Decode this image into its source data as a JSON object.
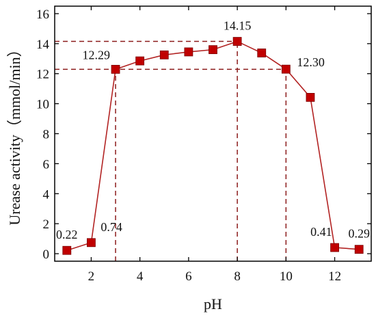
{
  "chart_data": {
    "type": "line",
    "title": "",
    "xlabel": "pH",
    "ylabel": "Urease activity（mmol/min）",
    "xlim": [
      0.5,
      13.5
    ],
    "ylim": [
      -0.5,
      16.5
    ],
    "xticks": [
      2,
      4,
      6,
      8,
      10,
      12
    ],
    "yticks": [
      0,
      2,
      4,
      6,
      8,
      10,
      12,
      14,
      16
    ],
    "grid": false,
    "marker": "square",
    "colors": {
      "series": "#B22222",
      "marker": "#C00000",
      "reference_lines": "#8B1A1A"
    },
    "series": [
      {
        "x": [
          1,
          2,
          3,
          4,
          5,
          6,
          7,
          8,
          9,
          10,
          11,
          12,
          13
        ],
        "values": [
          0.22,
          0.74,
          12.29,
          12.85,
          13.25,
          13.45,
          13.6,
          14.15,
          13.38,
          12.3,
          10.42,
          0.41,
          0.29
        ]
      }
    ],
    "data_labels": [
      {
        "x": 1,
        "y": 0.22,
        "text": "0.22"
      },
      {
        "x": 2,
        "y": 0.74,
        "text": "0.74"
      },
      {
        "x": 3,
        "y": 12.29,
        "text": "12.29"
      },
      {
        "x": 8,
        "y": 14.15,
        "text": "14.15"
      },
      {
        "x": 10,
        "y": 12.3,
        "text": "12.30"
      },
      {
        "x": 12,
        "y": 0.41,
        "text": "0.41"
      },
      {
        "x": 13,
        "y": 0.29,
        "text": "0.29"
      }
    ],
    "reference_lines": [
      {
        "orientation": "horizontal",
        "y": 14.15,
        "x_from": 0.5,
        "x_to": 8
      },
      {
        "orientation": "horizontal",
        "y": 12.29,
        "x_from": 0.5,
        "x_to": 10
      },
      {
        "orientation": "vertical",
        "x": 3,
        "y_from": -0.5,
        "y_to": 12.29
      },
      {
        "orientation": "vertical",
        "x": 8,
        "y_from": -0.5,
        "y_to": 14.15
      },
      {
        "orientation": "vertical",
        "x": 10,
        "y_from": -0.5,
        "y_to": 12.3
      }
    ]
  }
}
